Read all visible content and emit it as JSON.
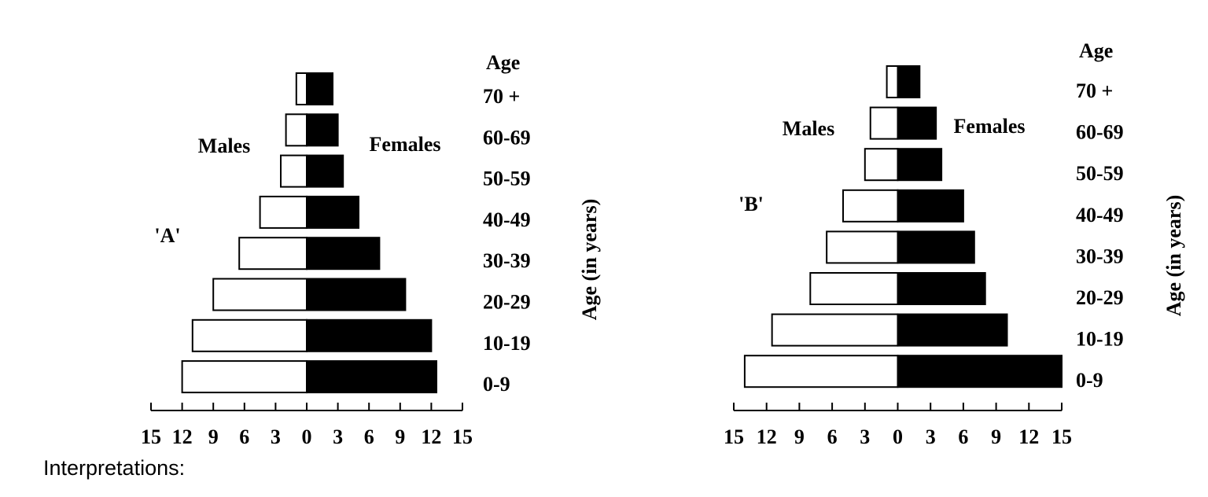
{
  "chart_data": [
    {
      "type": "pyramid",
      "title": "'A'",
      "age_header": "Age",
      "ylabel": "Age (in years)",
      "categories": [
        "70 +",
        "60-69",
        "50-59",
        "40-49",
        "30-39",
        "20-29",
        "10-19",
        "0-9"
      ],
      "series": [
        {
          "name": "Males",
          "color": "#ffffff",
          "values": [
            1,
            2,
            2.5,
            4.5,
            6.5,
            9,
            11,
            12
          ]
        },
        {
          "name": "Females",
          "color": "#000000",
          "values": [
            2.5,
            3,
            3.5,
            5,
            7,
            9.5,
            12,
            12.5
          ]
        }
      ],
      "xlim": [
        -15,
        15
      ],
      "xticks": [
        {
          "value": -15,
          "label": "15"
        },
        {
          "value": -12,
          "label": "12"
        },
        {
          "value": -9,
          "label": "9"
        },
        {
          "value": -6,
          "label": "6"
        },
        {
          "value": -3,
          "label": "3"
        },
        0,
        3,
        6,
        9,
        12,
        15
      ]
    },
    {
      "type": "pyramid",
      "title": "'B'",
      "age_header": "Age",
      "ylabel": "Age (in years)",
      "categories": [
        "70 +",
        "60-69",
        "50-59",
        "40-49",
        "30-39",
        "20-29",
        "10-19",
        "0-9"
      ],
      "series": [
        {
          "name": "Males",
          "color": "#ffffff",
          "values": [
            1,
            2.5,
            3,
            5,
            6.5,
            8,
            11.5,
            14
          ]
        },
        {
          "name": "Females",
          "color": "#000000",
          "values": [
            2,
            3.5,
            4,
            6,
            7,
            8,
            10,
            15
          ]
        }
      ],
      "xlim": [
        -15,
        15
      ],
      "xticks": [
        {
          "value": -15,
          "label": "15"
        },
        {
          "value": -12,
          "label": "12"
        },
        {
          "value": -9,
          "label": "9"
        },
        {
          "value": -6,
          "label": "6"
        },
        {
          "value": -3,
          "label": "3"
        },
        0,
        3,
        6,
        9,
        12,
        15
      ]
    }
  ],
  "caption": "Interpretations:"
}
